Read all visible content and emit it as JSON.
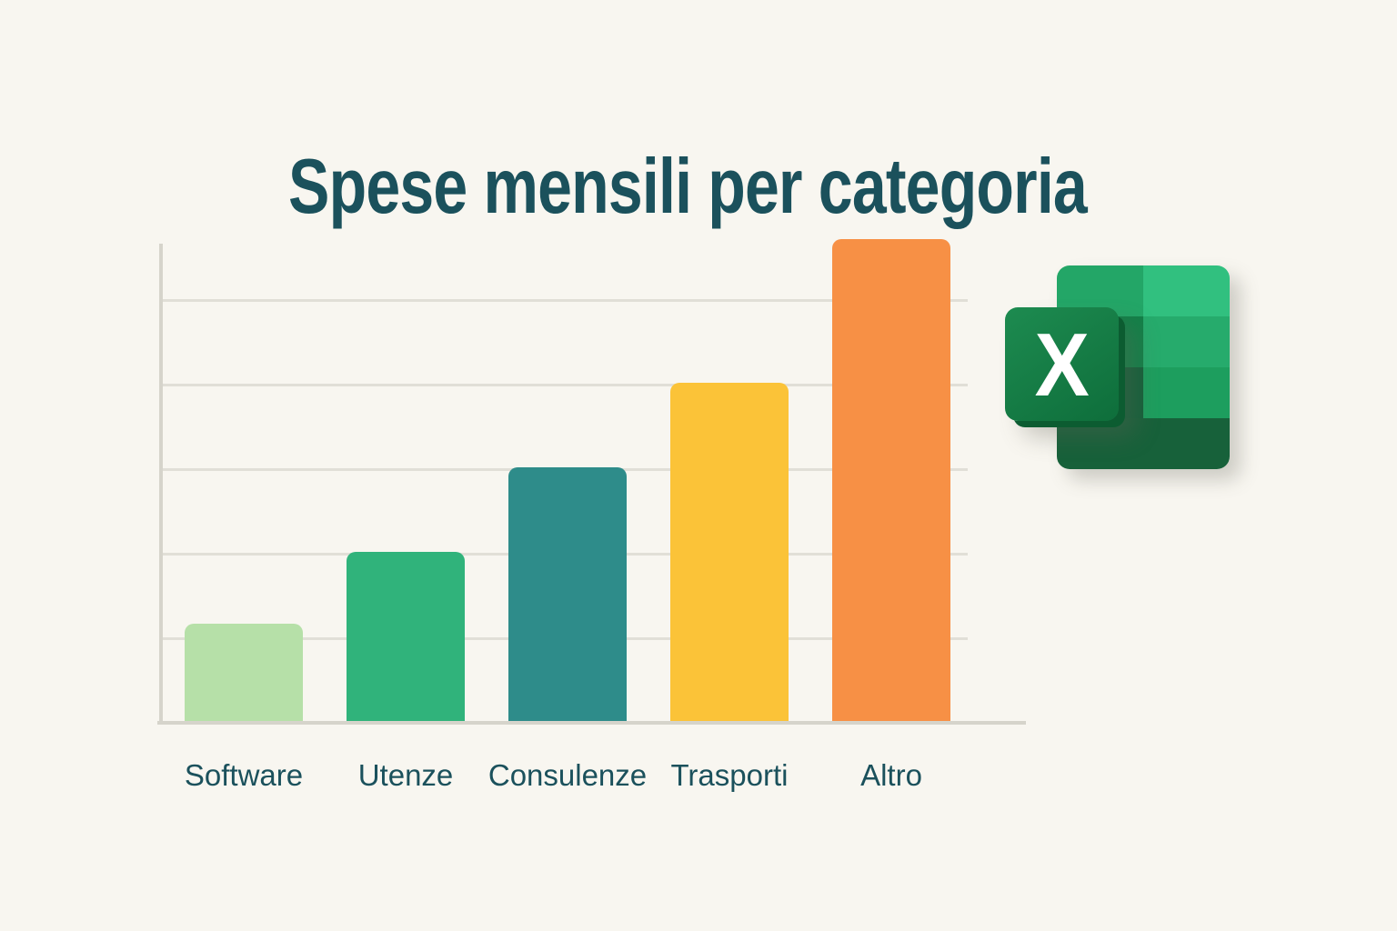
{
  "title": "Spese mensili per categoria",
  "chart_data": {
    "type": "bar",
    "title": "Spese mensili per categoria",
    "categories": [
      "Software",
      "Utenze",
      "Consulenze",
      "Trasporti",
      "Altro"
    ],
    "values": [
      1.15,
      2,
      3,
      4,
      5.7
    ],
    "value_note": "no numeric axis labels shown; values estimated in horizontal-gridline intervals (spacing = 1 unit)",
    "series": [
      {
        "name": "Spese mensili",
        "values": [
          1.15,
          2,
          3,
          4,
          5.7
        ]
      }
    ],
    "bar_colors": [
      "#b6e0a8",
      "#30b37b",
      "#2e8c8a",
      "#fbc338",
      "#f79045"
    ],
    "xlabel": "",
    "ylabel": "",
    "ylim": [
      0,
      5.7
    ],
    "grid": "5 horizontal gridlines",
    "legend": "none",
    "tick_labels_x": [
      "Software",
      "Utenze",
      "Consulenze",
      "Trasporti",
      "Altro"
    ],
    "tick_labels_y": "none visible"
  },
  "colors": {
    "background": "#f8f6f0",
    "ink": "#1b515c",
    "gridline": "#e1dfd7",
    "axis": "#d6d4cb"
  },
  "excel_icon": {
    "letter": "X",
    "colors": {
      "r1l": "#23a667",
      "r1r": "#31c07f",
      "r2l": "#128048",
      "r2r": "#26ab6c",
      "r3l": "#14603a",
      "r3r": "#1d9e5e",
      "r4c": "#17613a",
      "tile1": "#1d8b50",
      "tile2": "#0e6e3b",
      "tileedge": "#0c5c31",
      "letter": "#ffffff"
    }
  }
}
